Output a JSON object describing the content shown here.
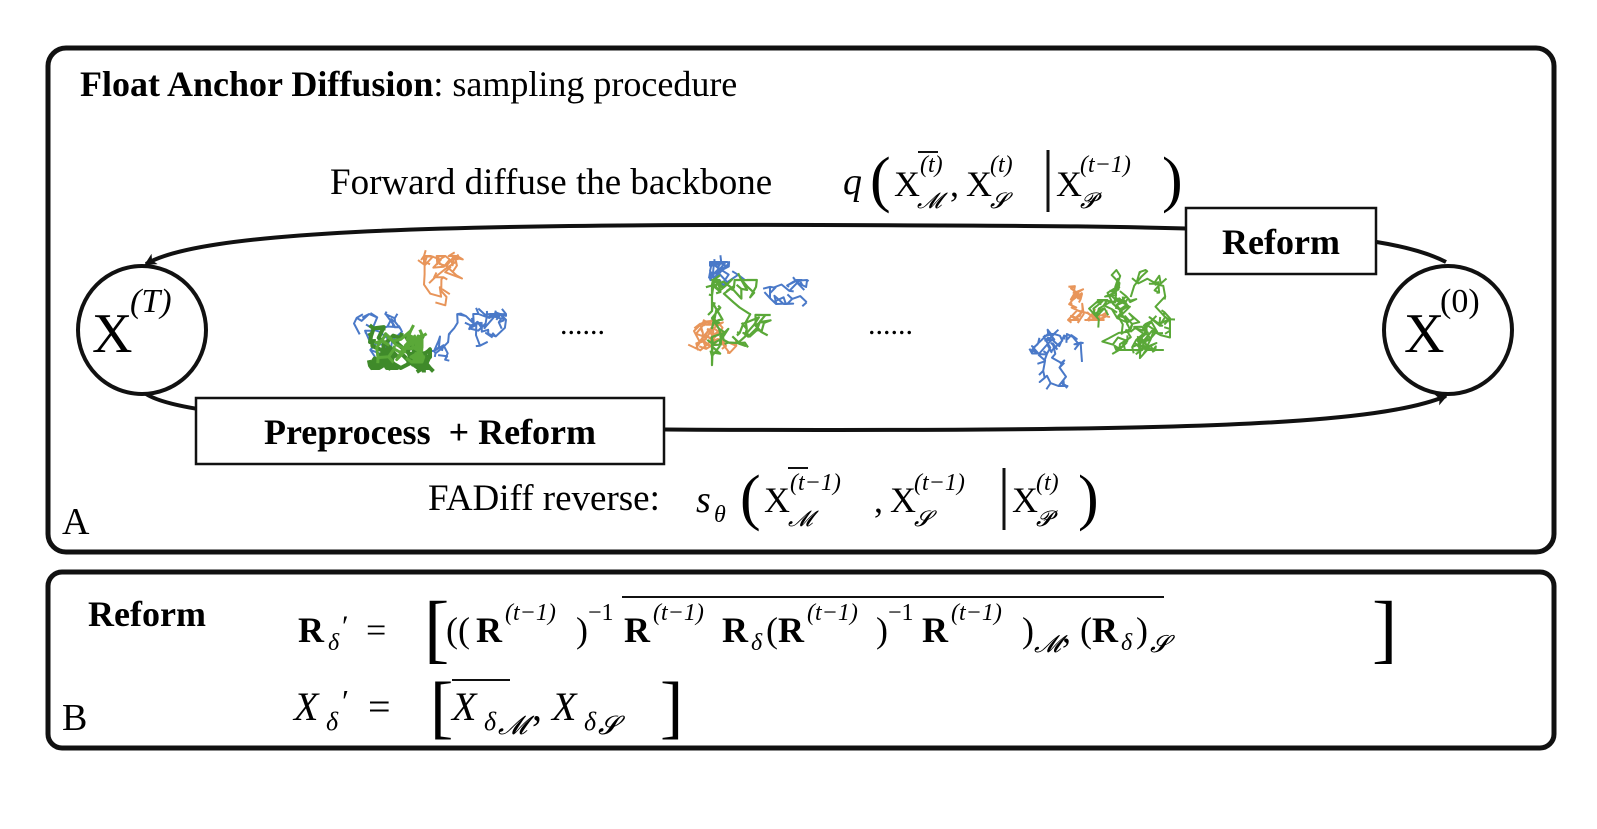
{
  "panel_a": {
    "title_bold": "Float Anchor Diffusion",
    "title_rest": ": sampling procedure",
    "forward_text": "Forward diffuse the backbone",
    "reverse_text": "FADiff reverse:",
    "reform_label": "Reform",
    "preprocess_label": "Preprocess  + Reform",
    "state_start": "X",
    "state_start_sup": "(T)",
    "state_end": "X",
    "state_end_sup": "(0)",
    "ellipsis_1": "......",
    "ellipsis_2": "......",
    "panel_letter": "A",
    "colors": {
      "motif": "#e8955a",
      "scaffold": "#4a79c8",
      "protein": "#5aa838"
    }
  },
  "panel_b": {
    "reform_label": "Reform",
    "panel_letter": "B"
  }
}
